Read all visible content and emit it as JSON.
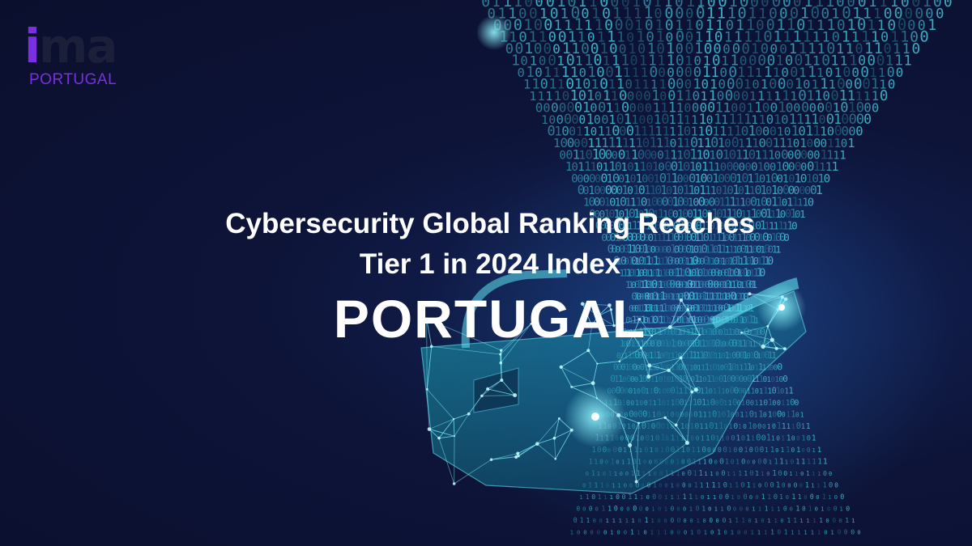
{
  "logo": {
    "letter_i": "i",
    "letters_ma": "ma",
    "subtitle": "PORTUGAL",
    "accent_color": "#7a2fe0",
    "dark_color": "#1c1f3a"
  },
  "headline": {
    "line1": "Cybersecurity Global Ranking Reaches",
    "line2": "Tier 1 in 2024 Index",
    "country": "PORTUGAL"
  },
  "theme": {
    "background": "#0d1133",
    "glow_color": "#39d6e6",
    "text_color": "#ffffff"
  },
  "artwork": {
    "description_icon": "digital-padlock-icon",
    "binary_digits": [
      "0",
      "1"
    ]
  }
}
